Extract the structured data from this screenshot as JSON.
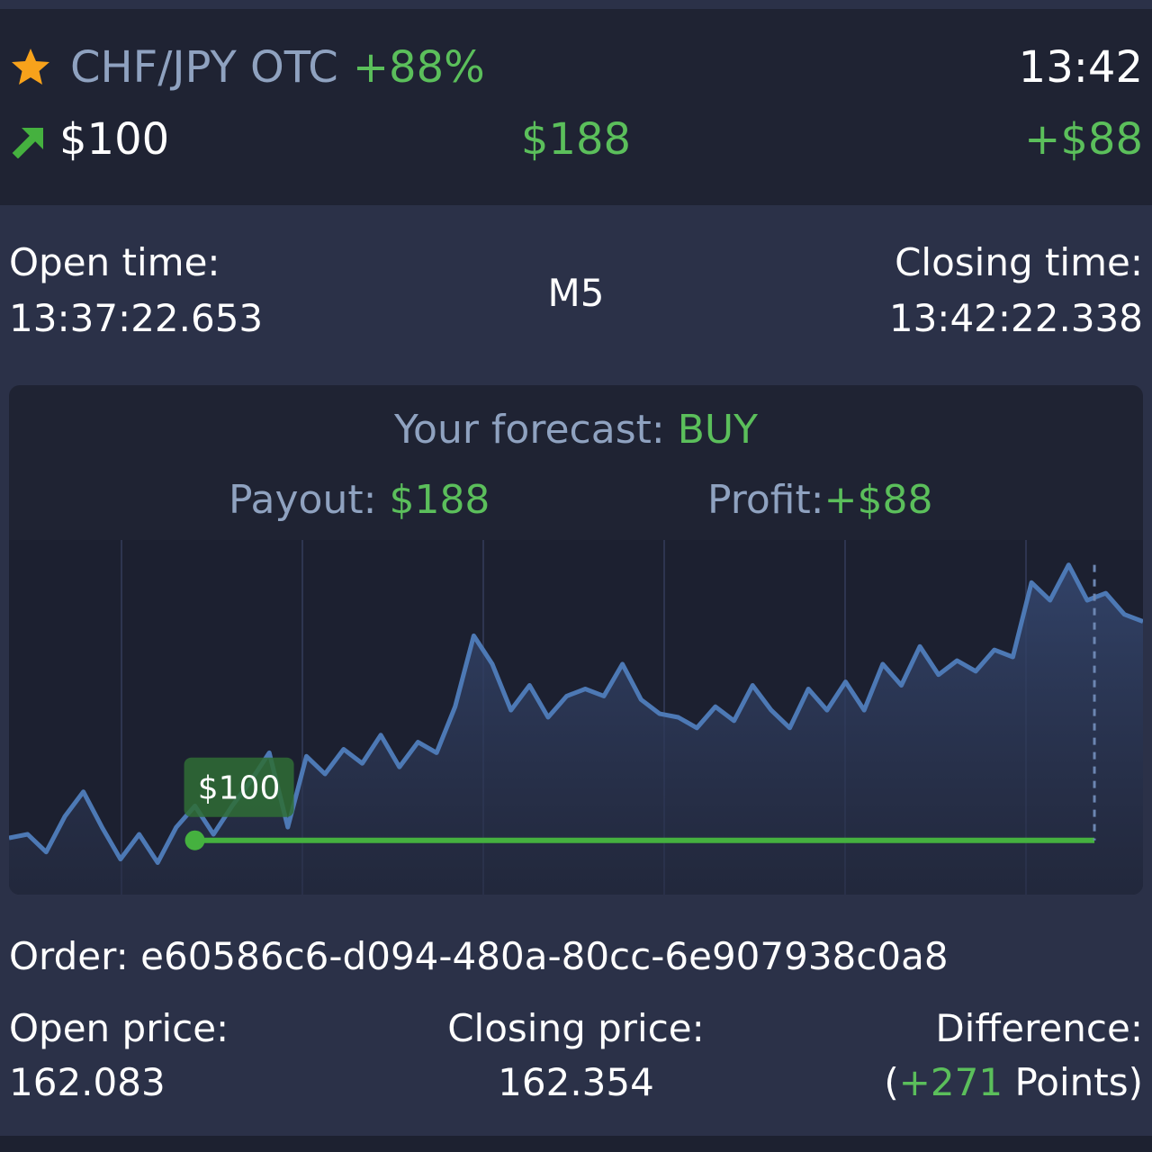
{
  "header": {
    "asset": "CHF/JPY OTC",
    "payout_percent": "+88%",
    "clock": "13:42",
    "stake": "$100",
    "payout": "$188",
    "profit": "+$88",
    "star_icon": "star-icon",
    "direction_icon": "arrow-up-right-icon"
  },
  "times": {
    "open_label": "Open time:",
    "open_value": "13:37:22.653",
    "timeframe": "M5",
    "close_label": "Closing time:",
    "close_value": "13:42:22.338"
  },
  "forecast": {
    "label": "Your forecast:",
    "value": "BUY",
    "payout_label": "Payout:",
    "payout_value": "$188",
    "profit_label": "Profit:",
    "profit_value": "+$88"
  },
  "chart_data": {
    "type": "area",
    "series": [
      {
        "values": [
          162.09,
          162.1,
          162.05,
          162.15,
          162.22,
          162.12,
          162.03,
          162.1,
          162.02,
          162.12,
          162.18,
          162.1,
          162.18,
          162.25,
          162.33,
          162.12,
          162.32,
          162.27,
          162.34,
          162.3,
          162.38,
          162.29,
          162.36,
          162.33,
          162.46,
          162.66,
          162.58,
          162.45,
          162.52,
          162.43,
          162.49,
          162.51,
          162.49,
          162.58,
          162.48,
          162.44,
          162.43,
          162.4,
          162.46,
          162.42,
          162.52,
          162.45,
          162.4,
          162.51,
          162.45,
          162.53,
          162.45,
          162.58,
          162.52,
          162.63,
          162.55,
          162.59,
          162.56,
          162.62,
          162.6,
          162.81,
          162.76,
          162.86,
          162.76,
          162.78,
          162.72,
          162.7
        ]
      }
    ],
    "entry_price": 162.083,
    "entry_label": "$100",
    "ylim": [
      161.93,
      162.93
    ],
    "grid": true,
    "line_color": "#4d79b5",
    "entry_line_color": "#45b13f"
  },
  "order": {
    "label": "Order:",
    "id": "e60586c6-d094-480a-80cc-6e907938c0a8"
  },
  "prices": {
    "open_label": "Open price:",
    "open_value": "162.083",
    "close_label": "Closing price:",
    "close_value": "162.354",
    "diff_label": "Difference:",
    "diff_open": "(",
    "diff_points": "+271",
    "diff_unit": " Points)"
  }
}
